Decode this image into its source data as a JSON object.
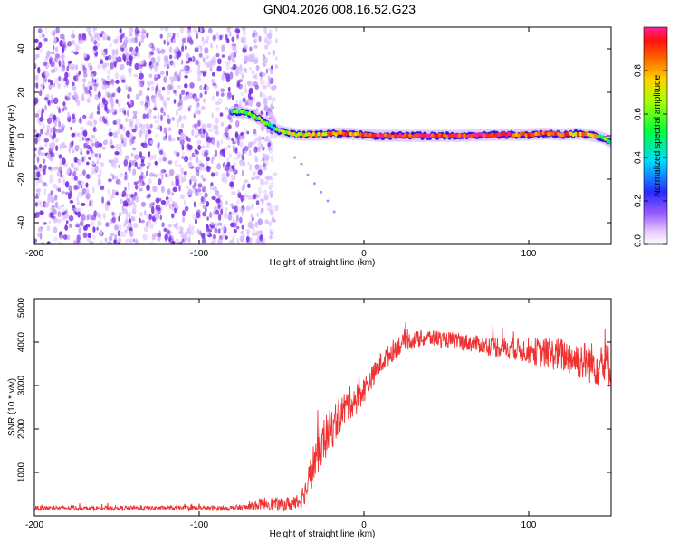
{
  "title": "GN04.2026.008.16.52.G23",
  "chart_data": [
    {
      "type": "scatter",
      "name": "spectrogram",
      "xlabel": "Height of straight line (km)",
      "ylabel": "Frequency (Hz)",
      "xlim": [
        -200,
        150
      ],
      "ylim": [
        -50,
        50
      ],
      "x_ticks": [
        "-200",
        "-100",
        "0",
        "100"
      ],
      "y_ticks": [
        "-40",
        "-20",
        "0",
        "20",
        "40"
      ],
      "colorbar": {
        "label": "Normalized spectral amplitude",
        "ticks": [
          "0.0",
          "0.2",
          "0.4",
          "0.6",
          "0.8"
        ],
        "range": [
          0,
          1
        ]
      },
      "noise_region_x": [
        -200,
        -57
      ],
      "track": {
        "x": [
          -80,
          -76,
          -72,
          -68,
          -64,
          -60,
          -56,
          -52,
          -48,
          -44,
          -40,
          -30,
          -20,
          -10,
          0,
          10,
          20,
          40,
          60,
          80,
          100,
          110,
          120,
          130,
          140,
          145,
          150
        ],
        "y": [
          11,
          11,
          10.5,
          9.5,
          8,
          6,
          4,
          2.5,
          1.5,
          1,
          0.5,
          0.5,
          1,
          1,
          0.5,
          0,
          0,
          0,
          0,
          0.5,
          0.5,
          1,
          0.5,
          1,
          0,
          -1,
          -3
        ],
        "amplitude": [
          0.5,
          0.55,
          0.6,
          0.65,
          0.6,
          0.55,
          0.5,
          0.55,
          0.6,
          0.65,
          0.7,
          0.75,
          0.8,
          0.85,
          0.9,
          0.95,
          0.95,
          0.95,
          0.9,
          0.9,
          0.9,
          0.85,
          0.85,
          0.8,
          0.75,
          0.6,
          0.5
        ]
      },
      "faint_branch": {
        "x": [
          -42,
          -38,
          -34,
          -30,
          -26,
          -22,
          -18
        ],
        "y": [
          -10,
          -13,
          -18,
          -22,
          -26,
          -30,
          -35
        ]
      },
      "colors": {
        "noise": "#7a2ee6",
        "noise_light": "#d7b8ff"
      }
    },
    {
      "type": "line",
      "name": "snr",
      "xlabel": "Height of straight line (km)",
      "ylabel": "SNR (10 * v/v)",
      "xlim": [
        -200,
        150
      ],
      "ylim": [
        0,
        5000
      ],
      "x_ticks": [
        "-200",
        "-100",
        "0",
        "100"
      ],
      "y_ticks": [
        "1000",
        "2000",
        "3000",
        "4000",
        "5000"
      ],
      "envelope": {
        "x": [
          -200,
          -150,
          -100,
          -80,
          -70,
          -60,
          -50,
          -40,
          -35,
          -30,
          -25,
          -20,
          -15,
          -10,
          -5,
          0,
          5,
          10,
          15,
          20,
          25,
          30,
          40,
          50,
          60,
          70,
          80,
          90,
          100,
          110,
          120,
          130,
          140,
          150
        ],
        "y": [
          180,
          180,
          180,
          180,
          200,
          300,
          250,
          300,
          600,
          1300,
          1700,
          2000,
          2300,
          2550,
          2700,
          2900,
          3200,
          3500,
          3700,
          3900,
          4000,
          4050,
          4100,
          4050,
          4000,
          3950,
          3900,
          3850,
          3800,
          3750,
          3700,
          3600,
          3500,
          3450
        ],
        "noise": [
          50,
          50,
          50,
          60,
          80,
          150,
          150,
          200,
          300,
          500,
          500,
          500,
          450,
          400,
          350,
          300,
          250,
          250,
          250,
          250,
          200,
          200,
          200,
          200,
          200,
          200,
          250,
          250,
          300,
          350,
          400,
          450,
          500,
          550
        ]
      },
      "color": "#ef3131"
    }
  ]
}
